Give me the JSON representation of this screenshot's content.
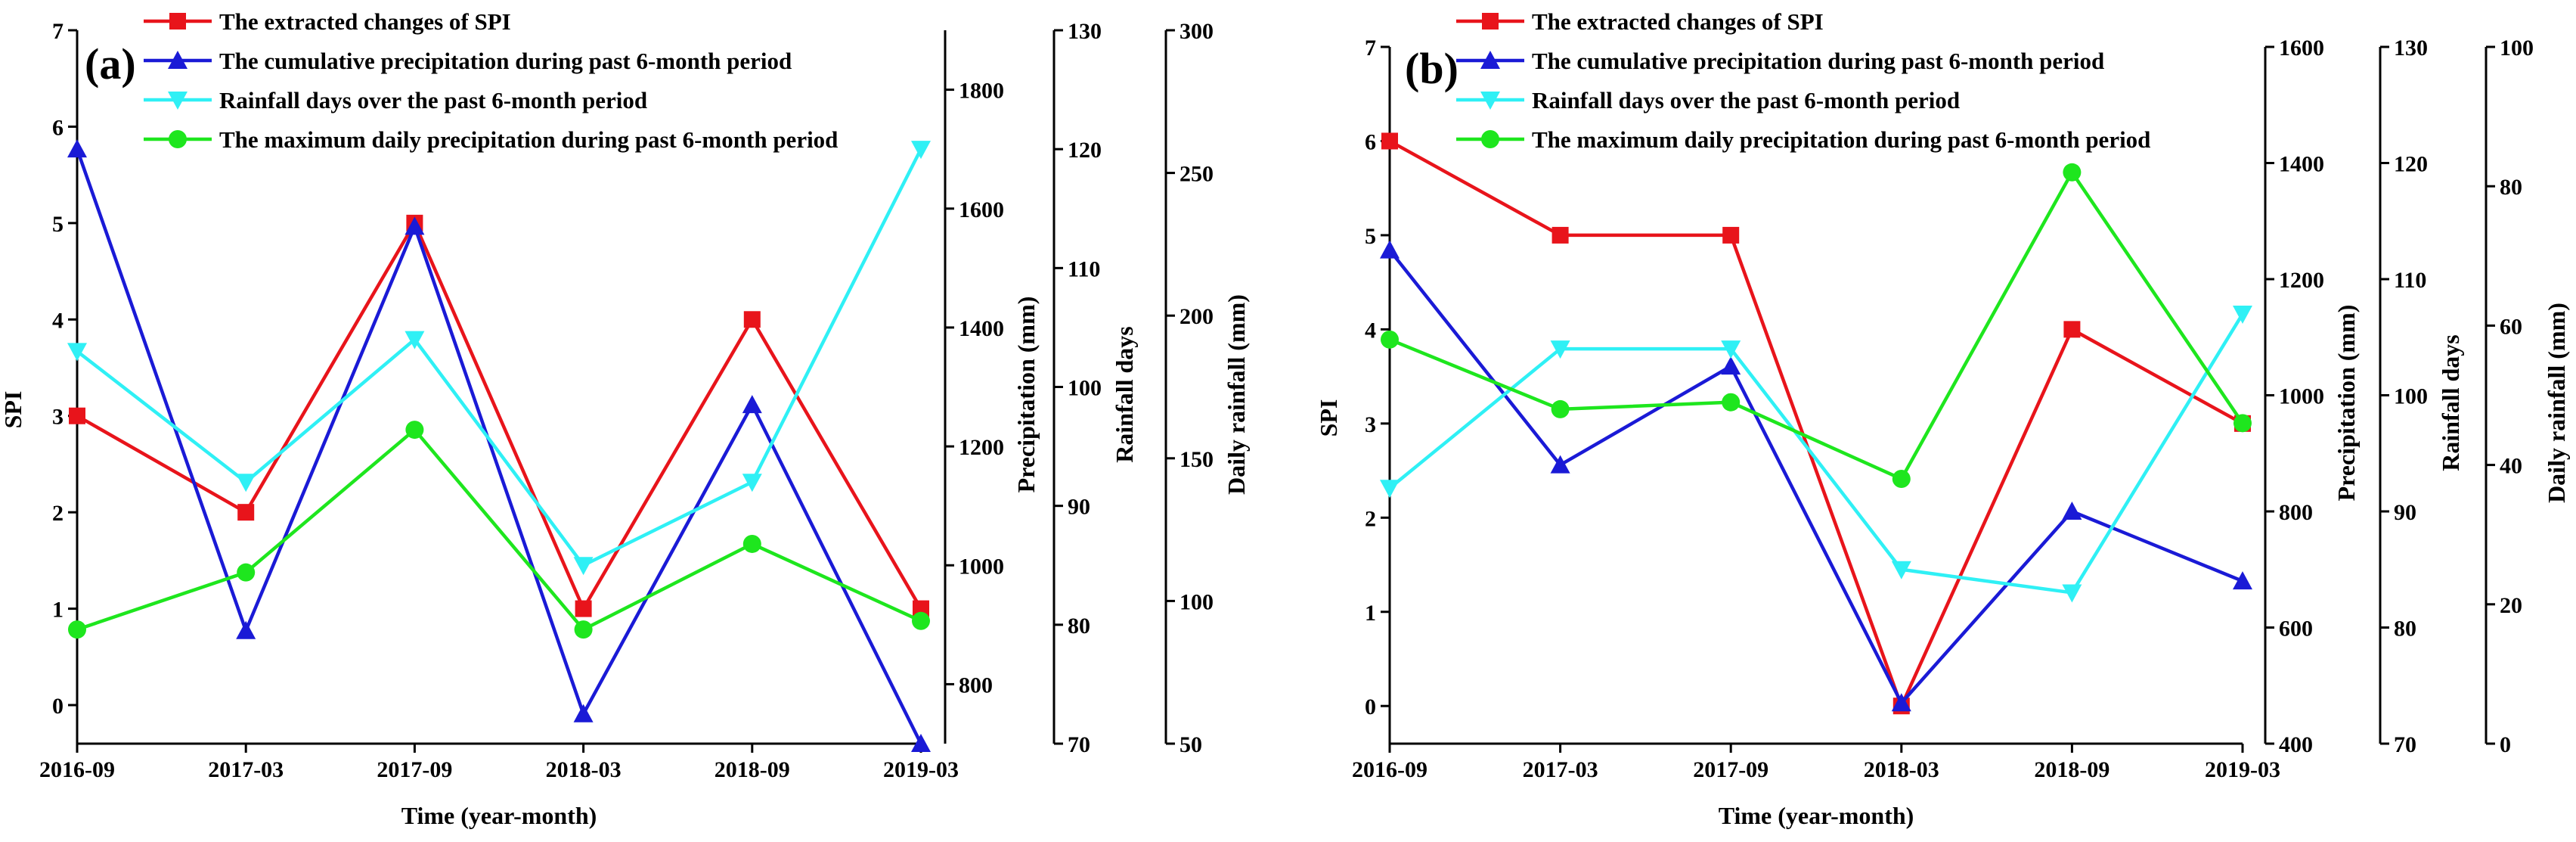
{
  "colors": {
    "spi": "#e8141b",
    "precip": "#1a1ad6",
    "rain_days": "#2ff0f5",
    "daily_rain": "#1ee61e",
    "axis": "#000000"
  },
  "legend": {
    "spi": "The extracted changes of  SPI",
    "precip": "The cumulative precipitation during past 6-month period",
    "rain_days": "Rainfall days over the past 6-month period",
    "daily_rain": "The maximum daily precipitation during past 6-month period"
  },
  "chart_data": [
    {
      "type": "line",
      "panel_label": "(a)",
      "categories": [
        "2016-09",
        "2017-03",
        "2017-09",
        "2018-03",
        "2018-09",
        "2019-03"
      ],
      "xlabel": "Time (year-month)",
      "axes": {
        "spi": {
          "label": "SPI",
          "range": [
            -0.4,
            7
          ],
          "ticks": [
            0,
            1,
            2,
            3,
            4,
            5,
            6,
            7
          ]
        },
        "precip": {
          "label": "Precipitation (mm)",
          "range": [
            700,
            1900
          ],
          "ticks": [
            800,
            1000,
            1200,
            1400,
            1600,
            1800
          ]
        },
        "rain_days": {
          "label": "Rainfall days",
          "range": [
            70,
            130
          ],
          "ticks": [
            70,
            80,
            90,
            100,
            110,
            120,
            130
          ]
        },
        "daily_rain": {
          "label": "Daily rainfall (mm)",
          "range": [
            50,
            300
          ],
          "ticks": [
            50,
            100,
            150,
            200,
            250,
            300
          ]
        }
      },
      "series": [
        {
          "key": "spi",
          "name": "The extracted changes of  SPI",
          "marker": "square",
          "axis": "spi",
          "values": [
            3,
            2,
            5,
            1,
            4,
            1
          ]
        },
        {
          "key": "precip",
          "name": "The cumulative precipitation during past 6-month period",
          "marker": "triangle-up",
          "axis": "precip",
          "values": [
            1700,
            890,
            1570,
            750,
            1270,
            700
          ]
        },
        {
          "key": "rain_days",
          "name": "Rainfall days over the past 6-month period",
          "marker": "triangle-down",
          "axis": "rain_days",
          "values": [
            103,
            92,
            104,
            85,
            92,
            120
          ]
        },
        {
          "key": "daily_rain",
          "name": "The maximum daily precipitation during past 6-month period",
          "marker": "circle",
          "axis": "daily_rain",
          "values": [
            90,
            110,
            160,
            90,
            120,
            93
          ]
        }
      ]
    },
    {
      "type": "line",
      "panel_label": "(b)",
      "categories": [
        "2016-09",
        "2017-03",
        "2017-09",
        "2018-03",
        "2018-09",
        "2019-03"
      ],
      "xlabel": "Time (year-month)",
      "axes": {
        "spi": {
          "label": "SPI",
          "range": [
            -0.4,
            7
          ],
          "ticks": [
            0,
            1,
            2,
            3,
            4,
            5,
            6,
            7
          ]
        },
        "precip": {
          "label": "Precipitation (mm)",
          "range": [
            400,
            1600
          ],
          "ticks": [
            400,
            600,
            800,
            1000,
            1200,
            1400,
            1600
          ]
        },
        "rain_days": {
          "label": "Rainfall days",
          "range": [
            70,
            130
          ],
          "ticks": [
            70,
            80,
            90,
            100,
            110,
            120,
            130
          ]
        },
        "daily_rain": {
          "label": "Daily rainfall (mm)",
          "range": [
            0,
            100
          ],
          "ticks": [
            0,
            20,
            40,
            60,
            80,
            100
          ]
        }
      },
      "series": [
        {
          "key": "spi",
          "name": "The extracted changes of  SPI",
          "marker": "square",
          "axis": "spi",
          "values": [
            6,
            5,
            5,
            0,
            4,
            3
          ]
        },
        {
          "key": "precip",
          "name": "The cumulative precipitation during past 6-month period",
          "marker": "triangle-up",
          "axis": "precip",
          "values": [
            1250,
            880,
            1050,
            470,
            800,
            680
          ]
        },
        {
          "key": "rain_days",
          "name": "Rainfall days over the past 6-month period",
          "marker": "triangle-down",
          "axis": "rain_days",
          "values": [
            92,
            104,
            104,
            85,
            83,
            107
          ]
        },
        {
          "key": "daily_rain",
          "name": "The maximum daily precipitation during past 6-month period",
          "marker": "circle",
          "axis": "daily_rain",
          "values": [
            58,
            48,
            49,
            38,
            82,
            46
          ]
        }
      ]
    }
  ]
}
